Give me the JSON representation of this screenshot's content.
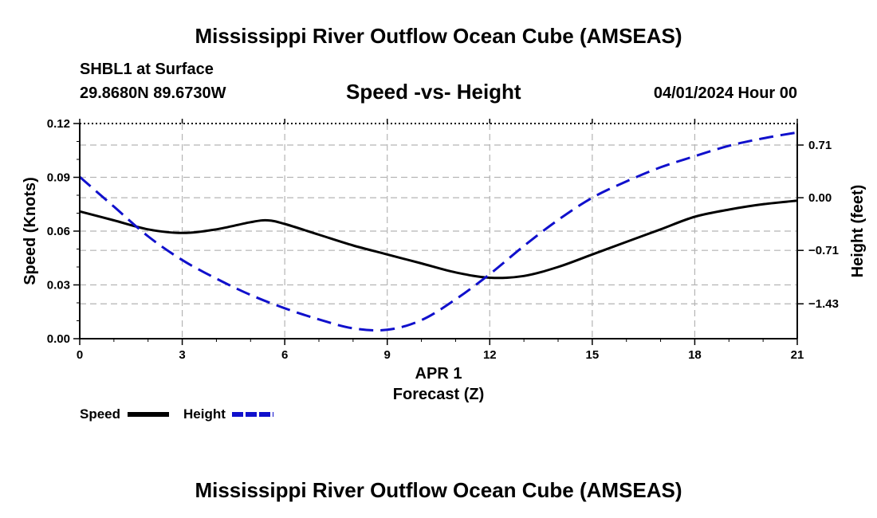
{
  "title": "Mississippi River Outflow Ocean Cube (AMSEAS)",
  "station": "SHBL1 at Surface",
  "coords": "29.8680N  89.6730W",
  "subtitle": "Speed -vs- Height",
  "datetime": "04/01/2024 Hour 00",
  "footer_title": "Mississippi River Outflow Ocean Cube (AMSEAS)",
  "chart_data": {
    "type": "line",
    "title": "Speed -vs- Height",
    "xlabel_top": "APR 1",
    "xlabel": "Forecast (Z)",
    "ylabel": "Speed (Knots)",
    "y2label": "Height (feet)",
    "xlim": [
      0,
      21
    ],
    "ylim": [
      0,
      0.12
    ],
    "y2lim": [
      -1.9,
      1.0
    ],
    "x_ticks": [
      "0",
      "3",
      "6",
      "9",
      "12",
      "15",
      "18",
      "21"
    ],
    "y_ticks": [
      "0.00",
      "0.03",
      "0.06",
      "0.09",
      "0.12"
    ],
    "y2_ticks": [
      "-1.43",
      "-0.71",
      "0.00",
      "0.71"
    ],
    "grid": true,
    "colors": {
      "speed": "#000000",
      "height": "#1010cc",
      "grid": "#b4b4b4"
    },
    "series": [
      {
        "name": "Speed",
        "axis": "left",
        "x": [
          0,
          1,
          2,
          3,
          4,
          5,
          5.5,
          6,
          7,
          8,
          9,
          10,
          11,
          12,
          13,
          14,
          15,
          16,
          17,
          18,
          19,
          20,
          21
        ],
        "values": [
          0.071,
          0.066,
          0.061,
          0.059,
          0.061,
          0.065,
          0.066,
          0.064,
          0.058,
          0.052,
          0.047,
          0.042,
          0.037,
          0.034,
          0.035,
          0.04,
          0.047,
          0.054,
          0.061,
          0.068,
          0.072,
          0.075,
          0.077
        ]
      },
      {
        "name": "Height",
        "axis": "right",
        "x": [
          0,
          1,
          2,
          3,
          4,
          5,
          6,
          7,
          8,
          9,
          10,
          11,
          12,
          13,
          14,
          15,
          16,
          17,
          18,
          19,
          20,
          21
        ],
        "values": [
          0.28,
          -0.12,
          -0.52,
          -0.84,
          -1.09,
          -1.31,
          -1.49,
          -1.64,
          -1.76,
          -1.78,
          -1.65,
          -1.37,
          -1.03,
          -0.65,
          -0.3,
          0.0,
          0.22,
          0.41,
          0.56,
          0.7,
          0.8,
          0.88
        ]
      }
    ],
    "legend": [
      {
        "label": "Speed",
        "series": "Speed"
      },
      {
        "label": "Height",
        "series": "Height"
      }
    ],
    "legend_position": "bottom-left"
  }
}
